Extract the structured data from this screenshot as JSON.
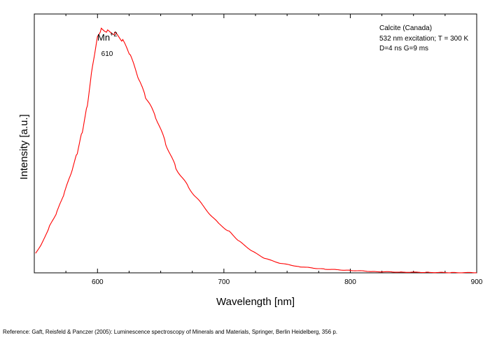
{
  "chart_data": {
    "type": "line",
    "title": "",
    "xlabel": "Wavelength [nm]",
    "ylabel": "Intensity [a.u.]",
    "xlim": [
      550,
      900
    ],
    "ylim": [
      0,
      1.06
    ],
    "x_ticks": [
      600,
      700,
      800,
      900
    ],
    "y_ticks_labeled": false,
    "grid": false,
    "legend": "none",
    "line_color": "#ff0000",
    "annotations": {
      "info_lines": [
        "Calcite (Canada)",
        "532 nm excitation; T = 300 K",
        "D=4 ns G=9 ms"
      ],
      "peak_label": {
        "ion": "Mn",
        "superscript": "+2",
        "wavelength": "610"
      }
    },
    "series": [
      {
        "x": [
          551,
          556,
          562,
          568,
          574,
          580,
          584,
          588,
          592,
          596,
          600,
          603,
          608,
          614,
          620,
          626,
          632,
          638,
          646,
          654,
          662,
          672,
          684,
          696,
          704,
          712,
          722,
          732,
          744,
          760,
          780,
          800,
          820,
          840,
          860,
          880,
          900
        ],
        "y": [
          0.08,
          0.12,
          0.19,
          0.25,
          0.33,
          0.42,
          0.49,
          0.58,
          0.69,
          0.85,
          0.97,
          1.0,
          0.99,
          0.98,
          0.95,
          0.89,
          0.8,
          0.72,
          0.64,
          0.53,
          0.43,
          0.35,
          0.27,
          0.2,
          0.17,
          0.13,
          0.09,
          0.06,
          0.04,
          0.025,
          0.015,
          0.01,
          0.005,
          0.003,
          0.002,
          0.001,
          0.001
        ]
      }
    ]
  },
  "reference": "Reference: Gaft, Reisfeld & Panczer (2005): Luminescence spectroscopy of Minerals and Materials, Springer, Berlin Heidelberg, 356 p."
}
